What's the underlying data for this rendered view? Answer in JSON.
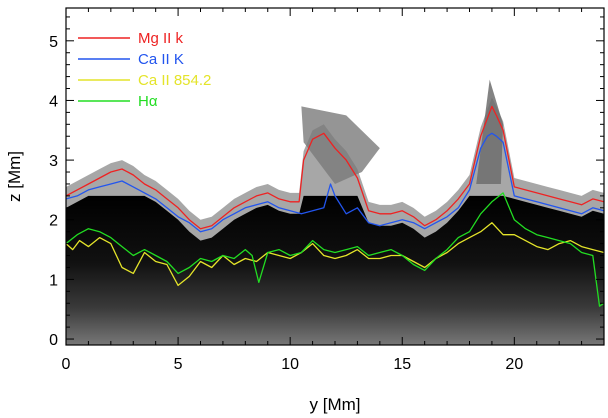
{
  "chart_data": {
    "type": "line",
    "xlabel": "y [Mm]",
    "ylabel": "z [Mm]",
    "xlim": [
      0,
      24
    ],
    "ylim": [
      -0.1,
      5.55
    ],
    "xticks": [
      0,
      5,
      10,
      15,
      20
    ],
    "yticks": [
      0,
      1,
      2,
      3,
      4,
      5
    ],
    "x_minor_step": 1,
    "y_minor_step": 0.2,
    "legend_position": "top-left",
    "background_image": "grayscale simulation snapshot",
    "series": [
      {
        "name": "Mg II k",
        "color": "#ee2222",
        "x": [
          0,
          0.5,
          1,
          1.5,
          2,
          2.5,
          3,
          3.5,
          4,
          4.5,
          5,
          5.5,
          6,
          6.5,
          7,
          7.5,
          8,
          8.5,
          9,
          9.5,
          10,
          10.4,
          10.6,
          11,
          11.5,
          12,
          12.5,
          13,
          13.5,
          14,
          14.5,
          15,
          15.5,
          16,
          16.5,
          17,
          17.5,
          18,
          18.5,
          18.8,
          19,
          19.2,
          19.5,
          20,
          20.5,
          21,
          21.5,
          22,
          22.5,
          23,
          23.5,
          24
        ],
        "y": [
          2.4,
          2.5,
          2.6,
          2.7,
          2.8,
          2.85,
          2.75,
          2.6,
          2.5,
          2.35,
          2.2,
          2.0,
          1.85,
          1.9,
          2.05,
          2.2,
          2.3,
          2.4,
          2.45,
          2.35,
          2.3,
          2.3,
          3.0,
          3.35,
          3.45,
          3.2,
          3.0,
          2.7,
          2.15,
          2.1,
          2.1,
          2.15,
          2.05,
          1.9,
          2.0,
          2.15,
          2.35,
          2.6,
          3.4,
          3.7,
          3.9,
          3.75,
          3.5,
          2.55,
          2.5,
          2.45,
          2.4,
          2.35,
          2.3,
          2.25,
          2.35,
          2.3
        ]
      },
      {
        "name": "Ca II K",
        "color": "#2255ee",
        "x": [
          0,
          0.5,
          1,
          1.5,
          2,
          2.5,
          3,
          3.5,
          4,
          4.5,
          5,
          5.5,
          6,
          6.5,
          7,
          7.5,
          8,
          8.5,
          9,
          9.5,
          10,
          10.5,
          11,
          11.5,
          11.8,
          12,
          12.5,
          13,
          13.5,
          14,
          14.5,
          15,
          15.5,
          16,
          16.5,
          17,
          17.5,
          18,
          18.5,
          18.8,
          19,
          19.2,
          19.5,
          20,
          20.5,
          21,
          21.5,
          22,
          22.5,
          23,
          23.5,
          24
        ],
        "y": [
          2.35,
          2.4,
          2.5,
          2.55,
          2.6,
          2.65,
          2.55,
          2.45,
          2.35,
          2.2,
          2.05,
          1.95,
          1.8,
          1.85,
          2.0,
          2.1,
          2.2,
          2.25,
          2.3,
          2.2,
          2.15,
          2.1,
          2.15,
          2.2,
          2.6,
          2.4,
          2.1,
          2.2,
          1.95,
          1.9,
          1.95,
          2.0,
          1.95,
          1.85,
          1.95,
          2.05,
          2.2,
          2.5,
          3.2,
          3.4,
          3.45,
          3.4,
          3.3,
          2.4,
          2.35,
          2.3,
          2.25,
          2.2,
          2.15,
          2.1,
          2.2,
          2.15
        ]
      },
      {
        "name": "Ca II 854.2",
        "color": "#e4e42a",
        "x": [
          0,
          0.3,
          0.6,
          1,
          1.5,
          2,
          2.5,
          3,
          3.5,
          4,
          4.5,
          5,
          5.5,
          6,
          6.5,
          7,
          7.5,
          8,
          8.5,
          9,
          9.5,
          10,
          10.5,
          11,
          11.5,
          12,
          12.5,
          13,
          13.5,
          14,
          14.5,
          15,
          15.5,
          16,
          16.5,
          17,
          17.5,
          18,
          18.5,
          19,
          19.5,
          20,
          20.5,
          21,
          21.5,
          22,
          22.5,
          23,
          23.5,
          24
        ],
        "y": [
          1.6,
          1.5,
          1.65,
          1.55,
          1.7,
          1.6,
          1.2,
          1.1,
          1.45,
          1.3,
          1.25,
          0.9,
          1.05,
          1.3,
          1.2,
          1.4,
          1.25,
          1.35,
          1.3,
          1.45,
          1.4,
          1.35,
          1.45,
          1.6,
          1.4,
          1.35,
          1.4,
          1.5,
          1.35,
          1.35,
          1.4,
          1.4,
          1.3,
          1.2,
          1.35,
          1.45,
          1.6,
          1.7,
          1.8,
          1.95,
          1.75,
          1.75,
          1.65,
          1.55,
          1.5,
          1.6,
          1.65,
          1.55,
          1.5,
          1.45
        ]
      },
      {
        "name": "Hα",
        "color": "#22dd22",
        "x": [
          0,
          0.5,
          1,
          1.5,
          2,
          2.5,
          3,
          3.5,
          4,
          4.5,
          5,
          5.5,
          6,
          6.5,
          7,
          7.5,
          8,
          8.3,
          8.6,
          9,
          9.5,
          10,
          10.5,
          11,
          11.5,
          12,
          12.5,
          13,
          13.5,
          14,
          14.5,
          15,
          15.5,
          16,
          16.5,
          17,
          17.5,
          18,
          18.5,
          19,
          19.5,
          20,
          20.5,
          21,
          21.5,
          22,
          22.5,
          23,
          23.5,
          23.8,
          24
        ],
        "y": [
          1.6,
          1.75,
          1.85,
          1.8,
          1.7,
          1.55,
          1.4,
          1.5,
          1.4,
          1.3,
          1.1,
          1.2,
          1.35,
          1.3,
          1.4,
          1.35,
          1.5,
          1.4,
          0.95,
          1.45,
          1.5,
          1.4,
          1.45,
          1.65,
          1.5,
          1.45,
          1.5,
          1.55,
          1.4,
          1.45,
          1.5,
          1.4,
          1.25,
          1.15,
          1.35,
          1.5,
          1.7,
          1.8,
          2.1,
          2.3,
          2.45,
          2.0,
          1.85,
          1.75,
          1.7,
          1.65,
          1.6,
          1.45,
          1.4,
          0.55,
          0.6
        ]
      }
    ]
  }
}
